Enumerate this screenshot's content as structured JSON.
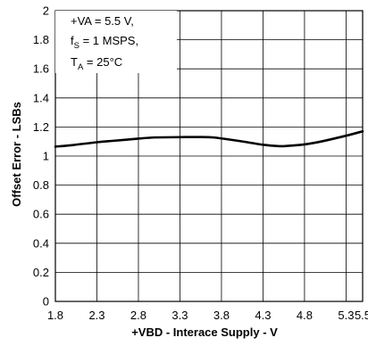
{
  "chart_data": {
    "type": "line",
    "title": "",
    "xlabel": "+VBD - Interace Supply - V",
    "ylabel": "Offset Error - LSBs",
    "xlim": [
      1.8,
      5.5
    ],
    "ylim": [
      0,
      2
    ],
    "xticks": [
      "1.8",
      "2.3",
      "2.8",
      "3.3",
      "3.8",
      "4.3",
      "4.8",
      "5.3",
      "5.5"
    ],
    "yticks": [
      "0",
      "0.2",
      "0.4",
      "0.6",
      "0.8",
      "1",
      "1.2",
      "1.4",
      "1.6",
      "1.8",
      "2"
    ],
    "grid": true,
    "annotation": {
      "line1": "+VA = 5.5 V,",
      "line2_main": "f",
      "line2_sub": "S",
      "line2_rest": " = 1 MSPS,",
      "line3_main": "T",
      "line3_sub": "A",
      "line3_rest": " = 25°C"
    },
    "series": [
      {
        "x": [
          1.8,
          2.0,
          2.3,
          2.5,
          2.8,
          3.0,
          3.3,
          3.5,
          3.7,
          4.0,
          4.3,
          4.5,
          4.6,
          4.8,
          5.0,
          5.3,
          5.5
        ],
        "values": [
          1.065,
          1.075,
          1.095,
          1.105,
          1.12,
          1.128,
          1.13,
          1.131,
          1.128,
          1.105,
          1.078,
          1.068,
          1.07,
          1.08,
          1.1,
          1.14,
          1.17
        ]
      }
    ],
    "colors": {
      "line": "#000000",
      "grid": "#000000",
      "background": "#ffffff"
    }
  }
}
